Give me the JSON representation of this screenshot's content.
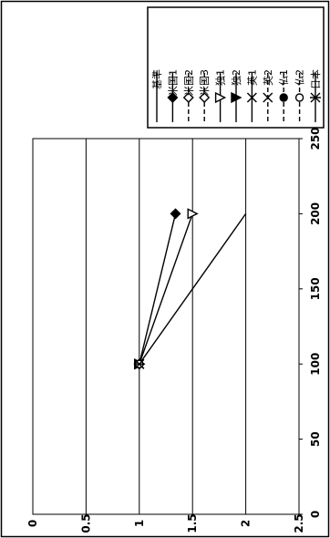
{
  "chart_data": {
    "type": "line",
    "orientation": "rotated-90-ccw",
    "xlim": [
      0,
      250
    ],
    "ylim": [
      0,
      2.5
    ],
    "x_ticks": [
      "0",
      "50",
      "100",
      "150",
      "200",
      "250"
    ],
    "y_ticks": [
      "0",
      "0.5",
      "1",
      "1.5",
      "2",
      "2.5"
    ],
    "grid": "horizontal-y",
    "legend_position": "right",
    "series": [
      {
        "name": "基準",
        "marker": "none",
        "dash": "solid",
        "x": [
          100,
          200
        ],
        "y": [
          1,
          2
        ]
      },
      {
        "name": "米国1",
        "marker": "filled-diamond",
        "dash": "solid",
        "x": [
          100,
          200
        ],
        "y": [
          1,
          1.34
        ]
      },
      {
        "name": "米国2",
        "marker": "open-diamond",
        "dash": "dashed",
        "x": [
          100
        ],
        "y": [
          1
        ]
      },
      {
        "name": "米国3",
        "marker": "open-diamond",
        "dash": "dashed",
        "x": [
          100
        ],
        "y": [
          1
        ]
      },
      {
        "name": "独1",
        "marker": "open-triangle",
        "dash": "solid",
        "x": [
          100,
          200
        ],
        "y": [
          1,
          1.5
        ]
      },
      {
        "name": "独2",
        "marker": "filled-triangle",
        "dash": "solid",
        "x": [
          100
        ],
        "y": [
          1
        ]
      },
      {
        "name": "英1",
        "marker": "x",
        "dash": "solid",
        "x": [
          100
        ],
        "y": [
          1
        ]
      },
      {
        "name": "英2",
        "marker": "x",
        "dash": "dashed",
        "x": [
          100
        ],
        "y": [
          1
        ]
      },
      {
        "name": "仏1",
        "marker": "filled-circle",
        "dash": "dashed",
        "x": [
          100
        ],
        "y": [
          1
        ]
      },
      {
        "name": "仏2",
        "marker": "open-circle",
        "dash": "dashed",
        "x": [
          100
        ],
        "y": [
          1
        ]
      },
      {
        "name": "日本",
        "marker": "x-bar",
        "dash": "solid",
        "x": [
          100
        ],
        "y": [
          1
        ]
      }
    ]
  }
}
